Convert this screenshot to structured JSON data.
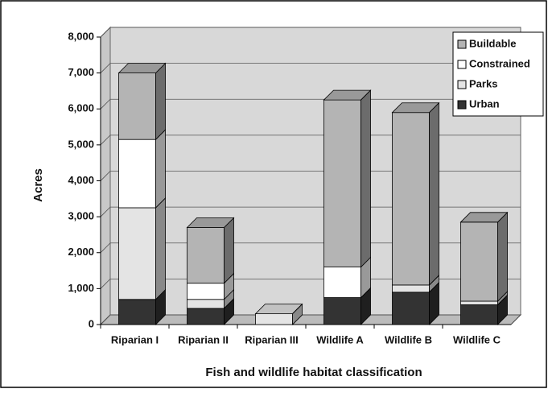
{
  "chart_data": {
    "type": "bar3d_stacked",
    "x_label": "Fish and wildlife habitat classification",
    "y_label": "Acres",
    "categories": [
      "Riparian I",
      "Riparian II",
      "Riparian III",
      "Wildlife A",
      "Wildlife B",
      "Wildlife C"
    ],
    "series": [
      {
        "name": "Buildable",
        "color": "#b4b4b4",
        "values": [
          1850,
          1550,
          0,
          4650,
          4800,
          2200
        ]
      },
      {
        "name": "Constrained",
        "color": "#ffffff",
        "values": [
          1900,
          450,
          0,
          850,
          0,
          0
        ]
      },
      {
        "name": "Parks",
        "color": "#e4e4e4",
        "values": [
          2550,
          250,
          300,
          0,
          200,
          100
        ]
      },
      {
        "name": "Urban",
        "color": "#333333",
        "values": [
          700,
          450,
          0,
          750,
          900,
          550
        ]
      }
    ],
    "ylim": [
      0,
      8000
    ],
    "yticks": [
      0,
      {
        "value": 1000,
        "label": "1,000"
      },
      {
        "value": 2000,
        "label": "2,000"
      },
      {
        "value": 3000,
        "label": "3,000"
      },
      {
        "value": 4000,
        "label": "4,000"
      },
      {
        "value": 5000,
        "label": "5,000"
      },
      {
        "value": 6000,
        "label": "6,000"
      },
      {
        "value": 7000,
        "label": "7,000"
      },
      {
        "value": 8000,
        "label": "8,000"
      }
    ],
    "grid": true,
    "legend": "top-right"
  }
}
